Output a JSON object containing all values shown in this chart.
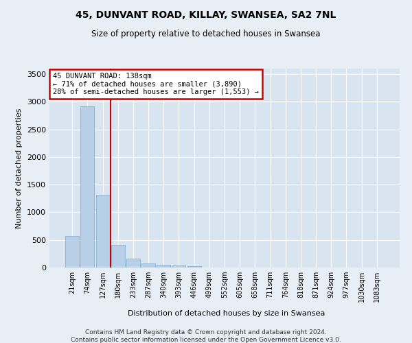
{
  "title_line1": "45, DUNVANT ROAD, KILLAY, SWANSEA, SA2 7NL",
  "title_line2": "Size of property relative to detached houses in Swansea",
  "xlabel": "Distribution of detached houses by size in Swansea",
  "ylabel": "Number of detached properties",
  "categories": [
    "21sqm",
    "74sqm",
    "127sqm",
    "180sqm",
    "233sqm",
    "287sqm",
    "340sqm",
    "393sqm",
    "446sqm",
    "499sqm",
    "552sqm",
    "605sqm",
    "658sqm",
    "711sqm",
    "764sqm",
    "818sqm",
    "871sqm",
    "924sqm",
    "977sqm",
    "1030sqm",
    "1083sqm"
  ],
  "values": [
    570,
    2920,
    1310,
    415,
    165,
    80,
    45,
    38,
    30,
    0,
    0,
    0,
    0,
    0,
    0,
    0,
    0,
    0,
    0,
    0,
    0
  ],
  "bar_color": "#b8cfe8",
  "bar_edge_color": "#7aaad0",
  "vline_color": "#cc0000",
  "vline_x": 2.5,
  "annotation_text": "45 DUNVANT ROAD: 138sqm\n← 71% of detached houses are smaller (3,890)\n28% of semi-detached houses are larger (1,553) →",
  "annotation_box_color": "#ffffff",
  "annotation_box_edge": "#cc0000",
  "ylim": [
    0,
    3600
  ],
  "yticks": [
    0,
    500,
    1000,
    1500,
    2000,
    2500,
    3000,
    3500
  ],
  "footer_line1": "Contains HM Land Registry data © Crown copyright and database right 2024.",
  "footer_line2": "Contains public sector information licensed under the Open Government Licence v3.0.",
  "bg_color": "#e8eef5",
  "plot_bg_color": "#d8e4f0"
}
